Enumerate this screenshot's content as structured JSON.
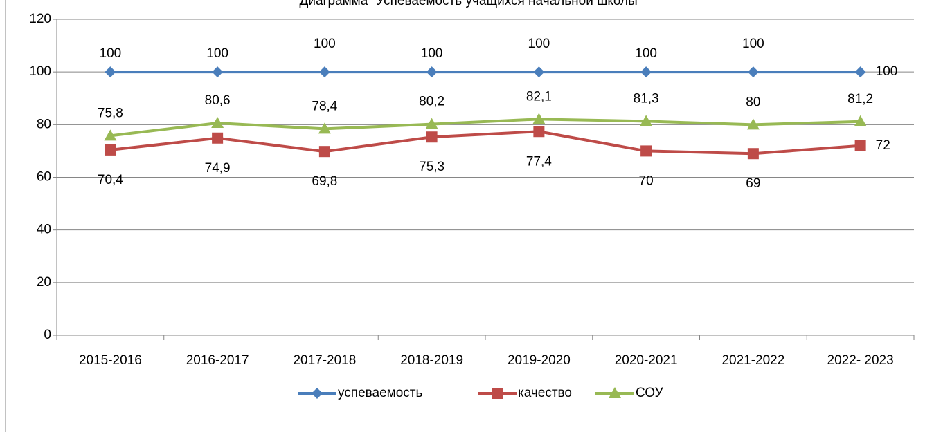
{
  "chart_data": {
    "type": "line",
    "title": "Диаграмма \"Успеваемость учащихся начальной школы\"",
    "categories": [
      "2015-2016",
      "2016-2017",
      "2017-2018",
      "2018-2019",
      "2019-2020",
      "2020-2021",
      "2021-2022",
      "2022- 2023"
    ],
    "series": [
      {
        "name": "успеваемость",
        "color": "#4a7ebb",
        "marker": "diamond",
        "values": [
          100,
          100,
          100,
          100,
          100,
          100,
          100,
          100
        ]
      },
      {
        "name": "качество",
        "color": "#be4b48",
        "marker": "square",
        "values": [
          70.4,
          74.9,
          69.8,
          75.3,
          77.4,
          70,
          69,
          72
        ],
        "value_labels": [
          "70,4",
          "74,9",
          "69,8",
          "75,3",
          "77,4",
          "70",
          "69",
          "72"
        ]
      },
      {
        "name": "СОУ",
        "color": "#98b954",
        "marker": "triangle",
        "values": [
          75.8,
          80.6,
          78.4,
          80.2,
          82.1,
          81.3,
          80,
          81.2
        ],
        "value_labels": [
          "75,8",
          "80,6",
          "78,4",
          "80,2",
          "82,1",
          "81,3",
          "80",
          "81,2"
        ]
      }
    ],
    "ylim": [
      0,
      120
    ],
    "yticks": [
      0,
      20,
      40,
      60,
      80,
      100,
      120
    ],
    "grid": true,
    "legend": "bottom"
  }
}
